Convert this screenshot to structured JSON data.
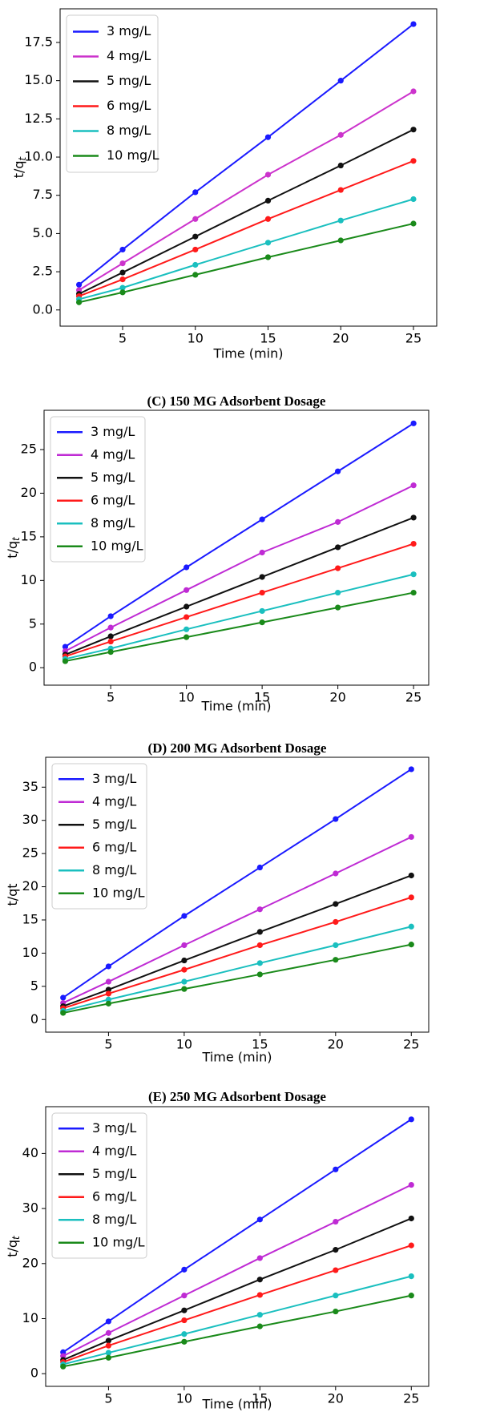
{
  "chart_data": [
    {
      "type": "line",
      "xlabel": "Time (min)",
      "ylabel": "t/q",
      "ylabel_subscript": "t",
      "x": [
        2,
        5,
        10,
        15,
        20,
        25
      ],
      "xlim": [
        0.7,
        26.6
      ],
      "xticks": [
        5,
        10,
        15,
        20,
        25
      ],
      "ylim": [
        -1.06,
        19.7
      ],
      "yticks": [
        {
          "value": 0,
          "label": "0.0"
        },
        {
          "value": 2.5,
          "label": "2.5"
        },
        {
          "value": 5,
          "label": "5.0"
        },
        {
          "value": 7.5,
          "label": "7.5"
        },
        {
          "value": 10,
          "label": "10.0"
        },
        {
          "value": 12.5,
          "label": "12.5"
        },
        {
          "value": 15,
          "label": "15.0"
        },
        {
          "value": 17.5,
          "label": "17.5"
        }
      ],
      "legend": "upper left",
      "series": [
        {
          "name": "3 mg/L",
          "color": "#1a1aff",
          "values": [
            1.65,
            3.95,
            7.7,
            11.3,
            15.0,
            18.7
          ]
        },
        {
          "name": "4 mg/L",
          "color": "#cc33cc",
          "values": [
            1.3,
            3.05,
            5.95,
            8.85,
            11.45,
            14.3
          ]
        },
        {
          "name": "5 mg/L",
          "color": "#111111",
          "values": [
            1.05,
            2.45,
            4.8,
            7.15,
            9.45,
            11.8
          ]
        },
        {
          "name": "6 mg/L",
          "color": "#ff1a1a",
          "values": [
            0.9,
            2.0,
            3.95,
            5.95,
            7.85,
            9.75
          ]
        },
        {
          "name": "8 mg/L",
          "color": "#1abfbf",
          "values": [
            0.7,
            1.45,
            2.95,
            4.4,
            5.85,
            7.25
          ]
        },
        {
          "name": "10 mg/L",
          "color": "#1a8a1a",
          "values": [
            0.5,
            1.15,
            2.3,
            3.45,
            4.55,
            5.65
          ]
        }
      ]
    },
    {
      "type": "line",
      "title": "(C) 150 MG Adsorbent Dosage",
      "xlabel": "Time (min)",
      "ylabel": "t/q",
      "ylabel_subscript": "t",
      "x": [
        2,
        5,
        10,
        15,
        20,
        25
      ],
      "xlim": [
        0.6,
        26.0
      ],
      "xticks": [
        5,
        10,
        15,
        20,
        25
      ],
      "ylim": [
        -2.0,
        29.5
      ],
      "yticks": [
        0,
        5,
        10,
        15,
        20,
        25
      ],
      "legend": "upper left",
      "series": [
        {
          "name": "3 mg/L",
          "color": "#1a1aff",
          "values": [
            2.4,
            5.9,
            11.5,
            17.0,
            22.5,
            28.0
          ]
        },
        {
          "name": "4 mg/L",
          "color": "#bf2bd4",
          "values": [
            1.9,
            4.6,
            8.9,
            13.2,
            16.7,
            20.9
          ]
        },
        {
          "name": "5 mg/L",
          "color": "#111111",
          "values": [
            1.5,
            3.6,
            7.0,
            10.4,
            13.8,
            17.2
          ]
        },
        {
          "name": "6 mg/L",
          "color": "#ff1a1a",
          "values": [
            1.3,
            3.0,
            5.8,
            8.6,
            11.4,
            14.2
          ]
        },
        {
          "name": "8 mg/L",
          "color": "#1abfbf",
          "values": [
            1.0,
            2.2,
            4.4,
            6.5,
            8.6,
            10.7
          ]
        },
        {
          "name": "10 mg/L",
          "color": "#1a8a1a",
          "values": [
            0.75,
            1.8,
            3.5,
            5.2,
            6.9,
            8.6
          ]
        }
      ]
    },
    {
      "type": "line",
      "title": "(D) 200 MG Adsorbent Dosage",
      "xlabel": "Time (min)",
      "ylabel": "t/qt",
      "x": [
        2,
        5,
        10,
        15,
        20,
        25
      ],
      "xlim": [
        0.85,
        26.15
      ],
      "xticks": [
        5,
        10,
        15,
        20,
        25
      ],
      "ylim": [
        -1.9,
        39.5
      ],
      "yticks": [
        0,
        5,
        10,
        15,
        20,
        25,
        30,
        35
      ],
      "legend": "upper left",
      "series": [
        {
          "name": "3 mg/L",
          "color": "#1a1aff",
          "values": [
            3.3,
            8.0,
            15.6,
            22.9,
            30.2,
            37.7
          ]
        },
        {
          "name": "4 mg/L",
          "color": "#bf2bd4",
          "values": [
            2.5,
            5.7,
            11.2,
            16.6,
            22.0,
            27.5
          ]
        },
        {
          "name": "5 mg/L",
          "color": "#111111",
          "values": [
            2.0,
            4.5,
            8.9,
            13.2,
            17.4,
            21.7
          ]
        },
        {
          "name": "6 mg/L",
          "color": "#ff1a1a",
          "values": [
            1.7,
            3.9,
            7.5,
            11.2,
            14.7,
            18.4
          ]
        },
        {
          "name": "8 mg/L",
          "color": "#1abfbf",
          "values": [
            1.3,
            3.0,
            5.7,
            8.5,
            11.2,
            14.0
          ]
        },
        {
          "name": "10 mg/L",
          "color": "#1a8a1a",
          "values": [
            1.0,
            2.4,
            4.6,
            6.8,
            9.0,
            11.3
          ]
        }
      ]
    },
    {
      "type": "line",
      "title": "(E) 250 MG Adsorbent Dosage",
      "xlabel": "Time (min)",
      "ylabel": "t/q",
      "ylabel_subscript": "t",
      "x": [
        2,
        5,
        10,
        15,
        20,
        25
      ],
      "xlim": [
        0.85,
        26.15
      ],
      "xticks": [
        5,
        10,
        15,
        20,
        25
      ],
      "ylim": [
        -2.3,
        48.5
      ],
      "yticks": [
        0,
        10,
        20,
        30,
        40
      ],
      "legend": "upper left",
      "series": [
        {
          "name": "3 mg/L",
          "color": "#1a1aff",
          "values": [
            3.9,
            9.5,
            18.9,
            28.0,
            37.1,
            46.2
          ]
        },
        {
          "name": "4 mg/L",
          "color": "#bf2bd4",
          "values": [
            3.2,
            7.4,
            14.2,
            21.0,
            27.6,
            34.3
          ]
        },
        {
          "name": "5 mg/L",
          "color": "#111111",
          "values": [
            2.5,
            6.0,
            11.5,
            17.1,
            22.5,
            28.2
          ]
        },
        {
          "name": "6 mg/L",
          "color": "#ff1a1a",
          "values": [
            2.1,
            5.1,
            9.7,
            14.3,
            18.8,
            23.3
          ]
        },
        {
          "name": "8 mg/L",
          "color": "#1abfbf",
          "values": [
            1.7,
            3.8,
            7.2,
            10.7,
            14.2,
            17.7
          ]
        },
        {
          "name": "10 mg/L",
          "color": "#1a8a1a",
          "values": [
            1.3,
            2.9,
            5.8,
            8.6,
            11.3,
            14.2
          ]
        }
      ]
    }
  ]
}
